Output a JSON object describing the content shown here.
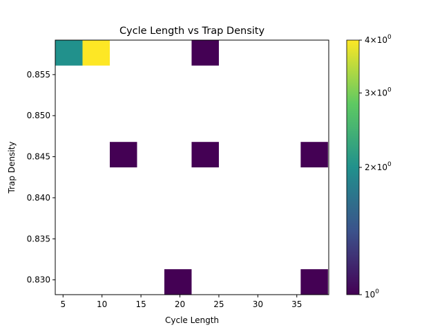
{
  "chart_data": {
    "type": "heatmap",
    "title": "Cycle Length vs Trap Density",
    "xlabel": "Cycle Length",
    "ylabel": "Trap Density",
    "xlim": [
      4,
      39.1
    ],
    "ylim": [
      0.8282,
      0.8592
    ],
    "xticks": [
      5,
      10,
      15,
      20,
      25,
      30,
      35
    ],
    "yticks": [
      0.83,
      0.835,
      0.84,
      0.845,
      0.85,
      0.855
    ],
    "ytick_labels": [
      "0.830",
      "0.835",
      "0.840",
      "0.845",
      "0.850",
      "0.855"
    ],
    "bin_width": 3.5,
    "bin_height": 0.0031,
    "cells": [
      {
        "x": 5.75,
        "y": 0.85765,
        "count": 2
      },
      {
        "x": 9.25,
        "y": 0.85765,
        "count": 4
      },
      {
        "x": 23.25,
        "y": 0.85765,
        "count": 1
      },
      {
        "x": 12.75,
        "y": 0.84525,
        "count": 1
      },
      {
        "x": 23.25,
        "y": 0.84525,
        "count": 1
      },
      {
        "x": 37.25,
        "y": 0.84525,
        "count": 1
      },
      {
        "x": 19.75,
        "y": 0.82975,
        "count": 1
      },
      {
        "x": 37.25,
        "y": 0.82975,
        "count": 1
      }
    ],
    "colorbar": {
      "colormap": "viridis",
      "scale": "log",
      "range": [
        1,
        4
      ],
      "ticks": [
        {
          "value": 4,
          "base": "4",
          "times": "×",
          "ten": "10",
          "exp": "0"
        },
        {
          "value": 3,
          "base": "3",
          "times": "×",
          "ten": "10",
          "exp": "0"
        },
        {
          "value": 2,
          "base": "2",
          "times": "×",
          "ten": "10",
          "exp": "0"
        },
        {
          "value": 1,
          "base": "",
          "times": "",
          "ten": "10",
          "exp": "0"
        }
      ]
    },
    "grid": false
  }
}
